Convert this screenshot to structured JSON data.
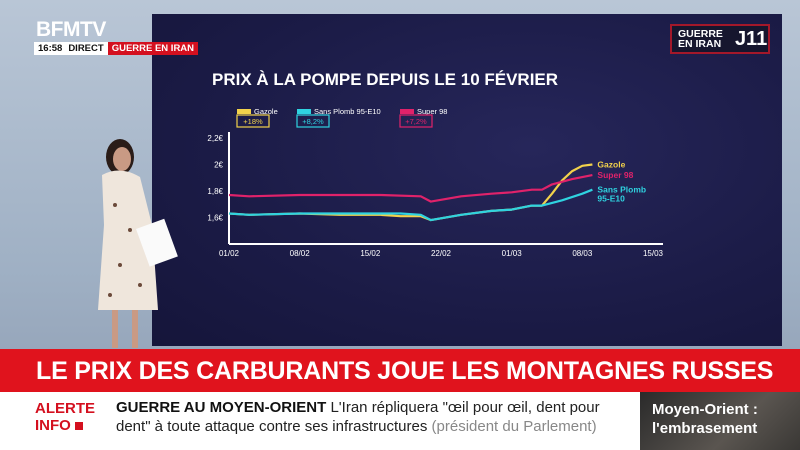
{
  "channel": {
    "logo": "BFMTV",
    "time": "16:58",
    "live": "DIRECT",
    "topic": "GUERRE EN IRAN"
  },
  "badge": {
    "title_line1": "GUERRE",
    "title_line2": "EN IRAN",
    "day": "J11"
  },
  "banner": {
    "headline": "LE PRIX DES CARBURANTS JOUE LES MONTAGNES RUSSES"
  },
  "ticker": {
    "alert_line1": "ALERTE",
    "alert_line2": "INFO",
    "section": "GUERRE AU MOYEN-ORIENT",
    "text": "L'Iran répliquera \"œil pour œil, dent pour dent\" à toute attaque contre ses infrastructures",
    "source": "(président du Parlement)"
  },
  "side_panel": {
    "line1": "Moyen-Orient :",
    "line2": "l'embrasement"
  },
  "colors": {
    "gazole": "#f2d24b",
    "sans_plomb": "#2fd3e0",
    "super98": "#e0226a",
    "brand_red": "#e0131d",
    "screen": "#1b1b46"
  },
  "chart_data": {
    "type": "line",
    "title": "PRIX À LA POMPE DEPUIS LE 10 FÉVRIER",
    "x_ticks": [
      "01/02",
      "08/02",
      "15/02",
      "22/02",
      "01/03",
      "08/03",
      "15/03"
    ],
    "y_ticks": [
      "1,6€",
      "1,8€",
      "2€",
      "2,2€"
    ],
    "ylim": [
      1.4,
      2.2
    ],
    "xlim": [
      "01/02",
      "15/03"
    ],
    "grid": false,
    "legend_position": "top-left",
    "series": [
      {
        "name": "Gazole",
        "end_label": "Gazole",
        "change": "+18%",
        "color": "#f2d24b",
        "points": [
          [
            "01/02",
            1.63
          ],
          [
            "03/02",
            1.62
          ],
          [
            "08/02",
            1.63
          ],
          [
            "12/02",
            1.62
          ],
          [
            "16/02",
            1.62
          ],
          [
            "18/02",
            1.61
          ],
          [
            "20/02",
            1.61
          ],
          [
            "21/02",
            1.58
          ],
          [
            "24/02",
            1.62
          ],
          [
            "27/02",
            1.65
          ],
          [
            "01/03",
            1.66
          ],
          [
            "03/03",
            1.69
          ],
          [
            "04/03",
            1.69
          ],
          [
            "05/03",
            1.78
          ],
          [
            "06/03",
            1.88
          ],
          [
            "07/03",
            1.95
          ],
          [
            "08/03",
            1.99
          ],
          [
            "09/03",
            2.0
          ]
        ]
      },
      {
        "name": "Sans Plomb 95-E10",
        "end_label": "Sans Plomb 95-E10",
        "change": "+8,2%",
        "color": "#2fd3e0",
        "points": [
          [
            "01/02",
            1.63
          ],
          [
            "03/02",
            1.62
          ],
          [
            "08/02",
            1.63
          ],
          [
            "12/02",
            1.63
          ],
          [
            "16/02",
            1.63
          ],
          [
            "18/02",
            1.63
          ],
          [
            "20/02",
            1.62
          ],
          [
            "21/02",
            1.58
          ],
          [
            "24/02",
            1.62
          ],
          [
            "27/02",
            1.65
          ],
          [
            "01/03",
            1.66
          ],
          [
            "03/03",
            1.69
          ],
          [
            "04/03",
            1.69
          ],
          [
            "06/03",
            1.73
          ],
          [
            "08/03",
            1.78
          ],
          [
            "09/03",
            1.81
          ]
        ]
      },
      {
        "name": "Super 98",
        "end_label": "Super 98",
        "change": "+7,2%",
        "color": "#e0226a",
        "points": [
          [
            "01/02",
            1.77
          ],
          [
            "03/02",
            1.76
          ],
          [
            "08/02",
            1.77
          ],
          [
            "12/02",
            1.77
          ],
          [
            "16/02",
            1.77
          ],
          [
            "20/02",
            1.76
          ],
          [
            "21/02",
            1.72
          ],
          [
            "24/02",
            1.76
          ],
          [
            "27/02",
            1.78
          ],
          [
            "01/03",
            1.79
          ],
          [
            "03/03",
            1.81
          ],
          [
            "04/03",
            1.81
          ],
          [
            "05/03",
            1.85
          ],
          [
            "07/03",
            1.89
          ],
          [
            "09/03",
            1.92
          ]
        ]
      }
    ]
  }
}
